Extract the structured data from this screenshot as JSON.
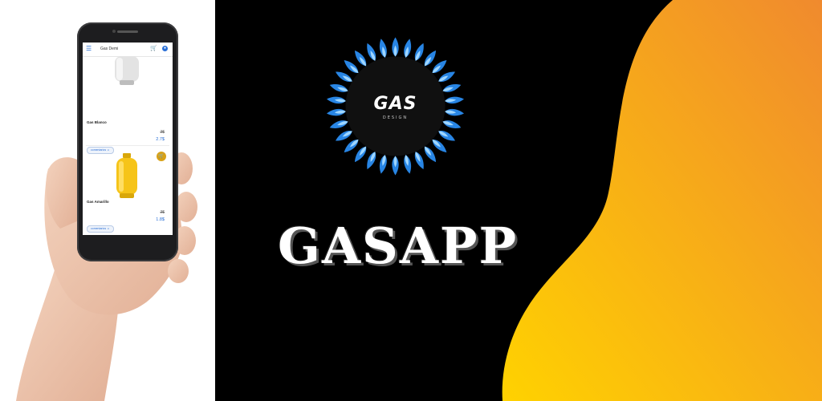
{
  "brand": {
    "title": "GASAPP"
  },
  "logo": {
    "text": "GAS",
    "subtext": "DESIGN"
  },
  "app": {
    "header": {
      "title": "Gas Demi"
    },
    "products": [
      {
        "name": "Gas Blanco",
        "old_price": "2$",
        "price": "2.7$",
        "comment_label": "comentarios"
      },
      {
        "name": "Gas Amarillo",
        "old_price": "2$",
        "price": "1.8$",
        "comment_label": "comentarios"
      }
    ]
  },
  "colors": {
    "background": "#000000",
    "wave_start": "#ffd200",
    "wave_end": "#f08a2e",
    "flame_blue": "#2a8cf0",
    "accent": "#2a6fd6",
    "cart_button": "#d8a116"
  },
  "icons": [
    "hamburger-icon",
    "cart-icon",
    "user-icon",
    "cart-icon",
    "comment-icon"
  ]
}
